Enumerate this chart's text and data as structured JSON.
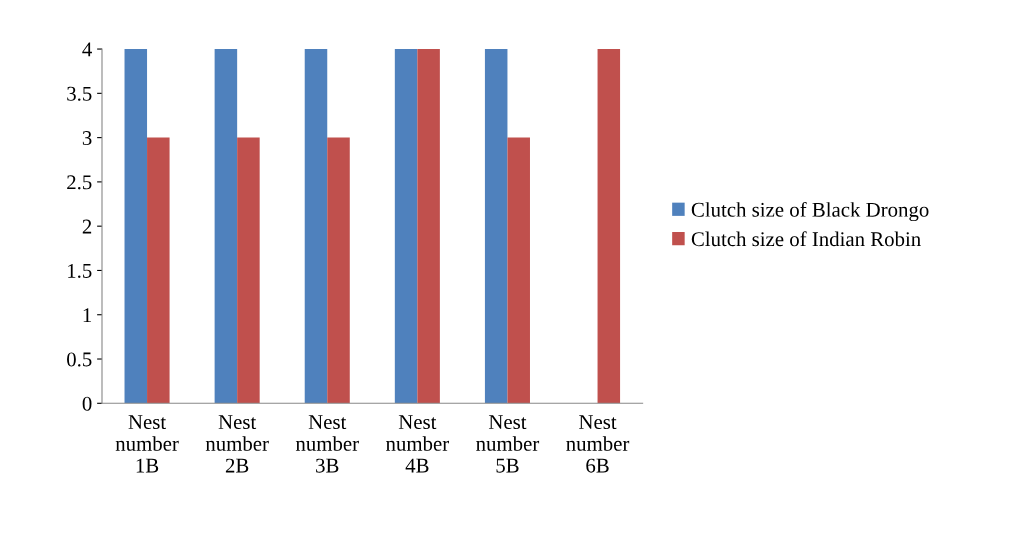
{
  "chart_data": {
    "type": "bar",
    "categories": [
      "Nest\nnumber\n1B",
      "Nest\nnumber\n2B",
      "Nest\nnumber\n3B",
      "Nest\nnumber\n4B",
      "Nest\nnumber\n5B",
      "Nest\nnumber\n6B"
    ],
    "series": [
      {
        "name": "Clutch size of Black Drongo",
        "color": "#4f81bd",
        "values": [
          4,
          4,
          4,
          4,
          4,
          0
        ]
      },
      {
        "name": "Clutch size of Indian Robin",
        "color": "#c0504d",
        "values": [
          3,
          3,
          3,
          4,
          3,
          4
        ]
      }
    ],
    "ylim": [
      0,
      4
    ],
    "yticks": [
      0,
      0.5,
      1,
      1.5,
      2,
      2.5,
      3,
      3.5,
      4
    ],
    "grid": false,
    "legend": "right"
  }
}
